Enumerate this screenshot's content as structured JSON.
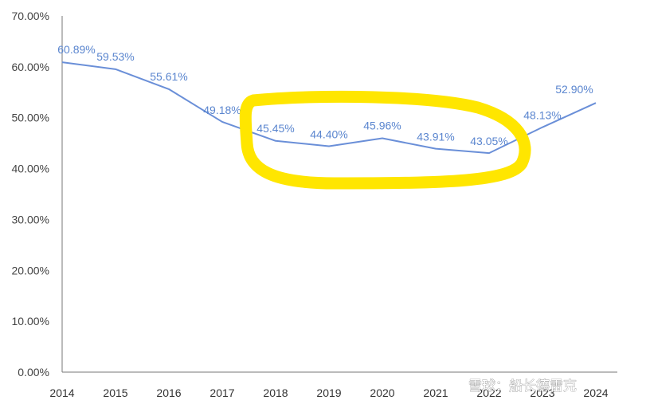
{
  "chart_data": {
    "type": "line",
    "title": "",
    "xlabel": "",
    "ylabel": "",
    "categories": [
      "2014",
      "2015",
      "2016",
      "2017",
      "2018",
      "2019",
      "2020",
      "2021",
      "2022",
      "2023",
      "2024"
    ],
    "series": [
      {
        "values": [
          60.89,
          59.53,
          55.61,
          49.18,
          45.45,
          44.4,
          45.96,
          43.91,
          43.05,
          48.13,
          52.9
        ],
        "labels": [
          "60.89%",
          "59.53%",
          "55.61%",
          "49.18%",
          "45.45%",
          "44.40%",
          "45.96%",
          "43.91%",
          "43.05%",
          "48.13%",
          "52.90%"
        ],
        "color": "#6a8fd8"
      }
    ],
    "ylim": [
      0,
      70
    ],
    "yticks": [
      0,
      10,
      20,
      30,
      40,
      50,
      60,
      70
    ],
    "ytick_labels": [
      "0.00%",
      "10.00%",
      "20.00%",
      "30.00%",
      "40.00%",
      "50.00%",
      "60.00%",
      "70.00%"
    ],
    "grid": false,
    "annotation": {
      "shape": "ellipse",
      "color": "#ffe600",
      "covers": [
        "2018",
        "2019",
        "2020",
        "2021",
        "2022"
      ]
    }
  },
  "watermark": {
    "text": "雪球：船长德雷克"
  }
}
